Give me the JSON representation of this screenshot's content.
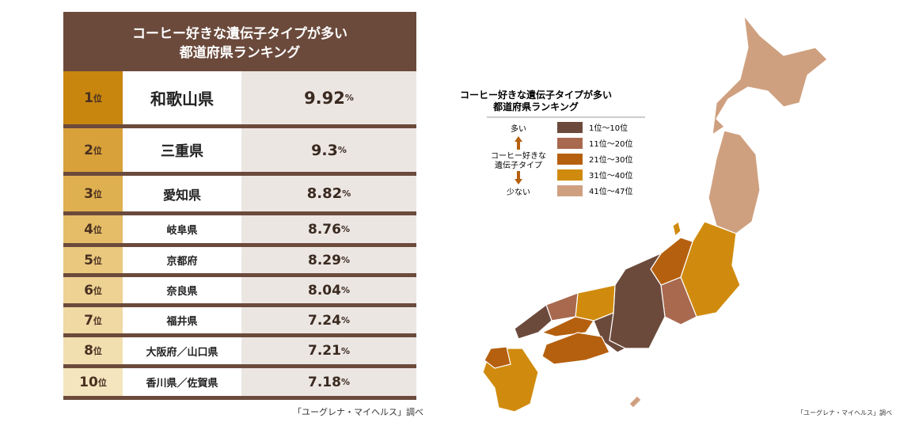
{
  "table": {
    "title_line1": "コーヒー好きな遺伝子タイプが多い",
    "title_line2": "都道府県ランキング",
    "rows": [
      [
        "1位",
        "和歌山県",
        "9.92%"
      ],
      [
        "2位",
        "三重県",
        "9.3%"
      ],
      [
        "3位",
        "愛知県",
        "8.82%"
      ],
      [
        "4位",
        "岐阜県",
        "8.76%"
      ],
      [
        "5位",
        "京都府",
        "8.29%"
      ],
      [
        "6位",
        "奈良県",
        "8.04%"
      ],
      [
        "7位",
        "福井県",
        "7.24%"
      ],
      [
        "8位",
        "大阪府／山口県",
        "7.21%"
      ],
      [
        "10位",
        "香川県／佐賀県",
        "7.18%"
      ]
    ],
    "source": "「ユーグレナ・マイヘルス」調べ"
  },
  "map": {
    "legend_title_line1": "コーヒー好きな遺伝子タイプが多い",
    "legend_title_line2": "都道府県ランキング",
    "more": "多い",
    "axis_line1": "コーヒー好きな",
    "axis_line2": "遺伝子タイプ",
    "less": "少ない",
    "legend": [
      {
        "label": "1位〜10位",
        "color": "#6b4a3c"
      },
      {
        "label": "11位〜20位",
        "color": "#a8694f"
      },
      {
        "label": "21位〜30位",
        "color": "#b5600f"
      },
      {
        "label": "31位〜40位",
        "color": "#d08b0e"
      },
      {
        "label": "41位〜47位",
        "color": "#cfa07f"
      }
    ],
    "source": "「ユーグレナ・マイヘルス」調べ"
  }
}
